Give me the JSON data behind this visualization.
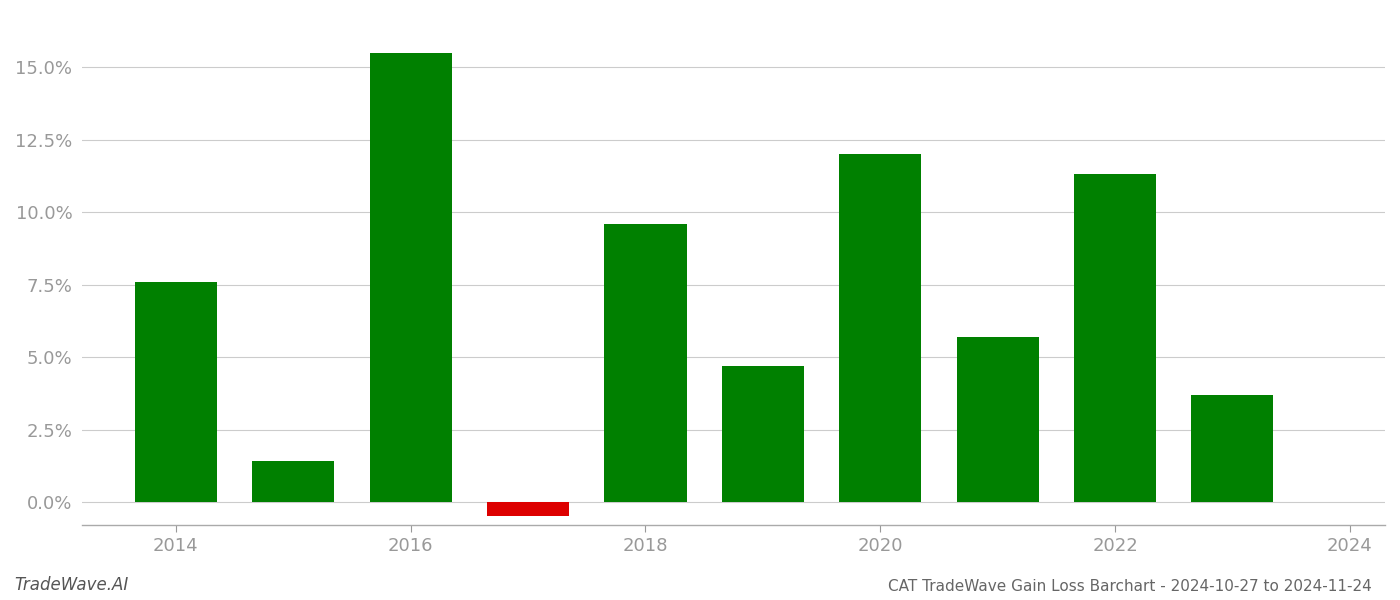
{
  "years": [
    2014,
    2015,
    2016,
    2017,
    2018,
    2019,
    2020,
    2021,
    2022,
    2023
  ],
  "values": [
    0.076,
    0.014,
    0.155,
    -0.005,
    0.096,
    0.047,
    0.12,
    0.057,
    0.113,
    0.037
  ],
  "colors": [
    "#008000",
    "#008000",
    "#008000",
    "#dd0000",
    "#008000",
    "#008000",
    "#008000",
    "#008000",
    "#008000",
    "#008000"
  ],
  "title": "CAT TradeWave Gain Loss Barchart - 2024-10-27 to 2024-11-24",
  "watermark": "TradeWave.AI",
  "ylim_min": -0.008,
  "ylim_max": 0.168,
  "yticks": [
    0.0,
    0.025,
    0.05,
    0.075,
    0.1,
    0.125,
    0.15
  ],
  "xtick_positions": [
    2014,
    2016,
    2018,
    2020,
    2022,
    2024
  ],
  "xtick_labels": [
    "2014",
    "2016",
    "2018",
    "2020",
    "2022",
    "2024"
  ],
  "xlim_min": 2013.2,
  "xlim_max": 2024.3,
  "background_color": "#ffffff",
  "grid_color": "#cccccc",
  "bar_width": 0.7,
  "tick_color": "#999999",
  "tick_fontsize": 13,
  "title_fontsize": 11,
  "watermark_fontsize": 12
}
